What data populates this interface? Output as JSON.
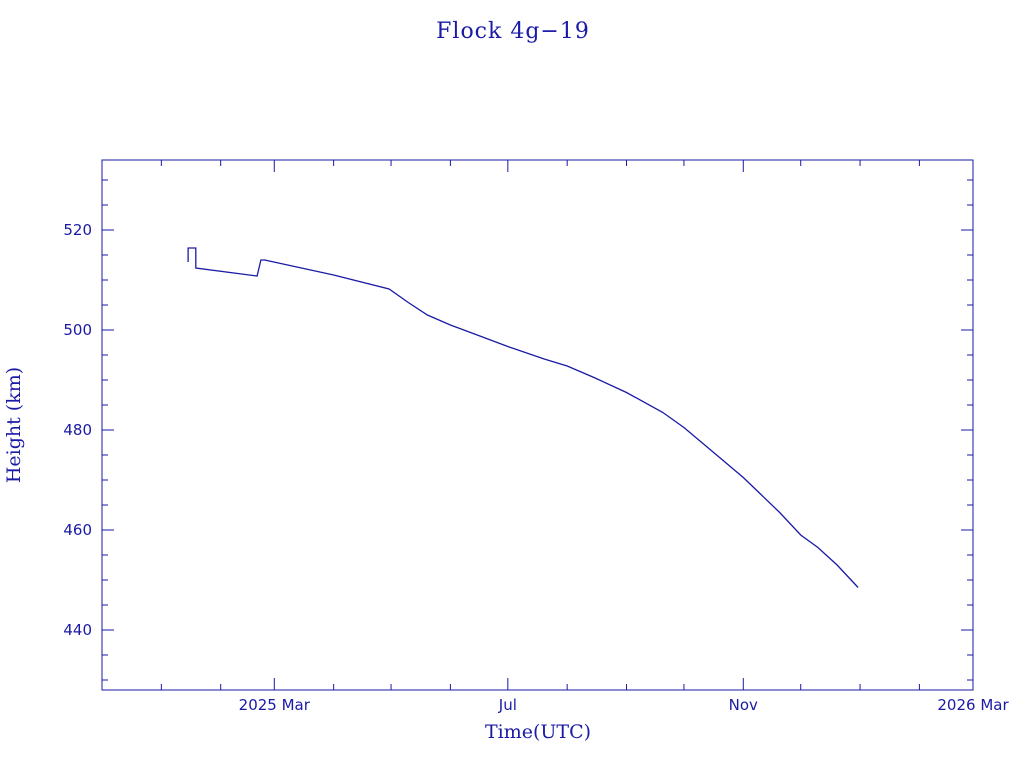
{
  "colors": {
    "axis": "#1a1aa6",
    "line": "#1a1aa6",
    "background": "#ffffff"
  },
  "chart_data": {
    "type": "line",
    "title": "Flock 4g−19",
    "xlabel": "Time(UTC)",
    "ylabel": "Height (km)",
    "grid": false,
    "legend": "none",
    "xlim": [
      "2024-12-01",
      "2026-03-01"
    ],
    "ylim": [
      428,
      534
    ],
    "x_ticks": [
      {
        "date": "2025-03-01",
        "label": "2025 Mar"
      },
      {
        "date": "2025-07-01",
        "label": "Jul"
      },
      {
        "date": "2025-11-01",
        "label": "Nov"
      },
      {
        "date": "2026-03-01",
        "label": "2026 Mar"
      }
    ],
    "y_ticks": [
      440,
      460,
      480,
      500,
      520
    ],
    "series": [
      {
        "x": [
          "2025-01-15",
          "2025-01-15",
          "2025-01-15",
          "2025-01-19",
          "2025-01-19",
          "2025-02-20",
          "2025-02-22",
          "2025-02-24",
          "2025-04-01",
          "2025-04-30",
          "2025-05-10",
          "2025-05-20",
          "2025-06-01",
          "2025-06-15",
          "2025-07-01",
          "2025-07-20",
          "2025-08-01",
          "2025-08-15",
          "2025-09-01",
          "2025-09-20",
          "2025-10-01",
          "2025-10-15",
          "2025-11-01",
          "2025-11-20",
          "2025-12-01",
          "2025-12-10",
          "2025-12-20",
          "2025-12-31"
        ],
        "y": [
          513.6,
          516.5,
          516.4,
          516.4,
          512.4,
          510.8,
          514.0,
          514.0,
          511.0,
          508.2,
          505.5,
          503.0,
          501.0,
          499.0,
          496.7,
          494.2,
          492.8,
          490.5,
          487.5,
          483.5,
          480.5,
          476.0,
          470.5,
          463.5,
          459.0,
          456.5,
          453.0,
          448.5
        ]
      }
    ]
  }
}
